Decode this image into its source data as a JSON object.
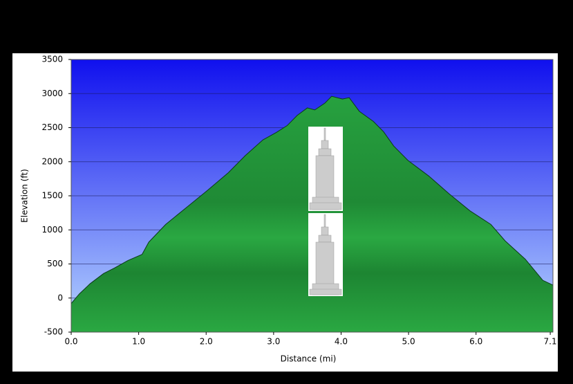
{
  "chart_data": {
    "type": "area",
    "x_label": "Distance   (mi)",
    "y_label": "Elevation (ft)",
    "x": [
      0.0,
      0.12,
      0.28,
      0.48,
      0.64,
      0.84,
      1.05,
      1.15,
      1.4,
      1.71,
      2.02,
      2.33,
      2.58,
      2.84,
      3.04,
      3.2,
      3.35,
      3.5,
      3.61,
      3.76,
      3.86,
      4.02,
      4.12,
      4.27,
      4.48,
      4.63,
      4.78,
      4.99,
      5.3,
      5.6,
      5.91,
      6.22,
      6.43,
      6.73,
      6.99,
      7.14
    ],
    "values": [
      -80,
      60,
      210,
      360,
      440,
      550,
      640,
      820,
      1080,
      1330,
      1580,
      1840,
      2090,
      2320,
      2430,
      2530,
      2680,
      2790,
      2760,
      2860,
      2960,
      2920,
      2940,
      2740,
      2590,
      2440,
      2230,
      2020,
      1790,
      1530,
      1280,
      1080,
      840,
      570,
      260,
      190
    ],
    "color": "#27a13f",
    "background": "#1e2cff",
    "xlim": [
      0,
      7.14
    ],
    "ylim": [
      -500,
      3500
    ],
    "xticks": [
      {
        "value": 0,
        "label": "0.0"
      },
      {
        "value": 1,
        "label": "1.0"
      },
      {
        "value": 2,
        "label": "2.0"
      },
      {
        "value": 3,
        "label": "3.0"
      },
      {
        "value": 4,
        "label": "4.0"
      },
      {
        "value": 5,
        "label": "5.0"
      },
      {
        "value": 6,
        "label": "6.0"
      },
      {
        "value": 7.1,
        "label": "7.1"
      }
    ],
    "yticks": [
      -500,
      0,
      500,
      1000,
      1500,
      2000,
      2500,
      3000,
      3500
    ],
    "grid": true
  }
}
